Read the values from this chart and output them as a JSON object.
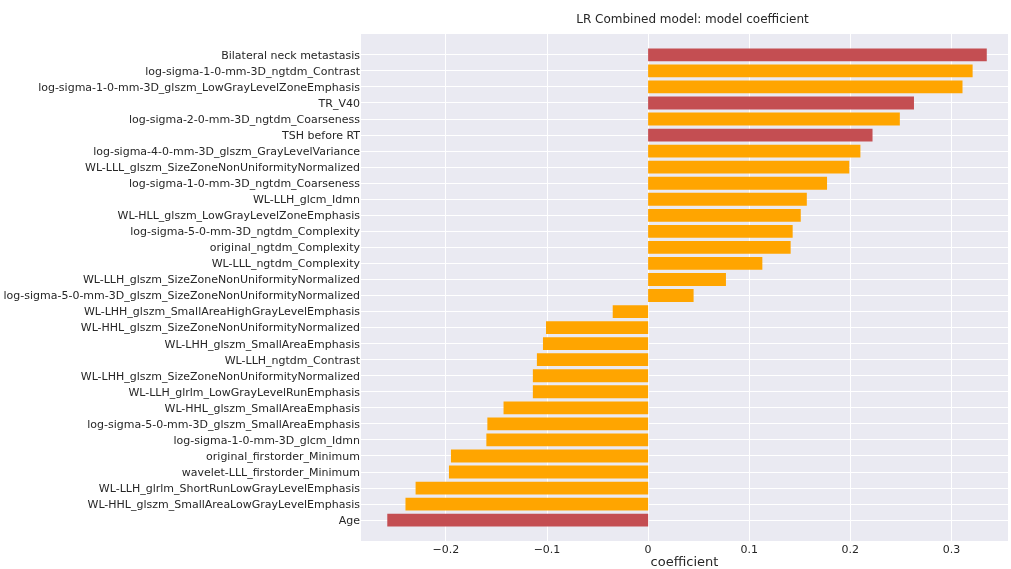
{
  "chart_data": {
    "type": "bar",
    "orientation": "horizontal",
    "title": "LR Combined model: model coefficient",
    "xlabel": "coefficient",
    "categories": [
      "Bilateral neck metastasis",
      "log-sigma-1-0-mm-3D_ngtdm_Contrast",
      "log-sigma-1-0-mm-3D_glszm_LowGrayLevelZoneEmphasis",
      "TR_V40",
      "log-sigma-2-0-mm-3D_ngtdm_Coarseness",
      "TSH before RT",
      "log-sigma-4-0-mm-3D_glszm_GrayLevelVariance",
      "WL-LLL_glszm_SizeZoneNonUniformityNormalized",
      "log-sigma-1-0-mm-3D_ngtdm_Coarseness",
      "WL-LLH_glcm_Idmn",
      "WL-HLL_glszm_LowGrayLevelZoneEmphasis",
      "log-sigma-5-0-mm-3D_ngtdm_Complexity",
      "original_ngtdm_Complexity",
      "WL-LLL_ngtdm_Complexity",
      "WL-LLH_glszm_SizeZoneNonUniformityNormalized",
      "log-sigma-5-0-mm-3D_glszm_SizeZoneNonUniformityNormalized",
      "WL-LHH_glszm_SmallAreaHighGrayLevelEmphasis",
      "WL-HHL_glszm_SizeZoneNonUniformityNormalized",
      "WL-LHH_glszm_SmallAreaEmphasis",
      "WL-LLH_ngtdm_Contrast",
      "WL-LHH_glszm_SizeZoneNonUniformityNormalized",
      "WL-LLH_glrlm_LowGrayLevelRunEmphasis",
      "WL-HHL_glszm_SmallAreaEmphasis",
      "log-sigma-5-0-mm-3D_glszm_SmallAreaEmphasis",
      "log-sigma-1-0-mm-3D_glcm_Idmn",
      "original_firstorder_Minimum",
      "wavelet-LLL_firstorder_Minimum",
      "WL-LLH_glrlm_ShortRunLowGrayLevelEmphasis",
      "WL-HHL_glszm_SmallAreaLowGrayLevelEmphasis",
      "Age"
    ],
    "values": [
      0.335,
      0.321,
      0.311,
      0.263,
      0.249,
      0.222,
      0.21,
      0.199,
      0.177,
      0.157,
      0.151,
      0.143,
      0.141,
      0.113,
      0.077,
      0.045,
      -0.035,
      -0.101,
      -0.104,
      -0.11,
      -0.114,
      -0.114,
      -0.143,
      -0.159,
      -0.16,
      -0.195,
      -0.197,
      -0.23,
      -0.24,
      -0.258
    ],
    "colors": [
      "#c44e52",
      "#ffa500",
      "#ffa500",
      "#c44e52",
      "#ffa500",
      "#c44e52",
      "#ffa500",
      "#ffa500",
      "#ffa500",
      "#ffa500",
      "#ffa500",
      "#ffa500",
      "#ffa500",
      "#ffa500",
      "#ffa500",
      "#ffa500",
      "#ffa500",
      "#ffa500",
      "#ffa500",
      "#ffa500",
      "#ffa500",
      "#ffa500",
      "#ffa500",
      "#ffa500",
      "#ffa500",
      "#ffa500",
      "#ffa500",
      "#ffa500",
      "#ffa500",
      "#c44e52"
    ],
    "xlim": [
      -0.284,
      0.356
    ],
    "xticks": [
      -0.2,
      -0.1,
      0,
      0.1,
      0.2,
      0.3
    ],
    "grid": true
  }
}
